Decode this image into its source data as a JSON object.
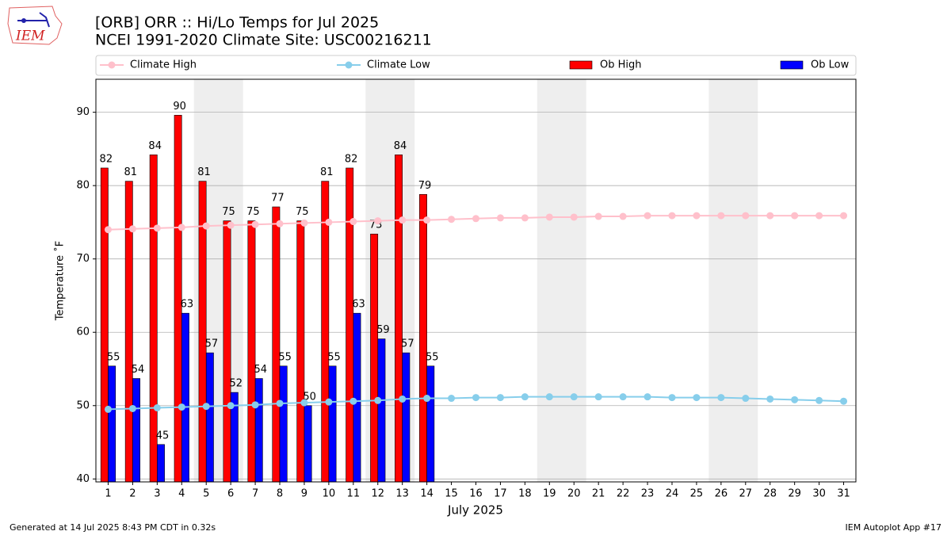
{
  "chart_data": {
    "type": "combo",
    "title": "[ORB] ORR :: Hi/Lo Temps for Jul 2025",
    "subtitle": "NCEI 1991-2020 Climate Site: USC00216211",
    "x_label": "July 2025",
    "y_label": "Temperature ˚F",
    "footer_left": "Generated at 14 Jul 2025 8:43 PM CDT in 0.32s",
    "footer_right": "IEM Autoplot App #17",
    "logo_text": "IEM",
    "x": [
      1,
      2,
      3,
      4,
      5,
      6,
      7,
      8,
      9,
      10,
      11,
      12,
      13,
      14,
      15,
      16,
      17,
      18,
      19,
      20,
      21,
      22,
      23,
      24,
      25,
      26,
      27,
      28,
      29,
      30,
      31
    ],
    "xlim": [
      0.5,
      31.5
    ],
    "xticks": [
      1,
      2,
      3,
      4,
      5,
      6,
      7,
      8,
      9,
      10,
      11,
      12,
      13,
      14,
      15,
      16,
      17,
      18,
      19,
      20,
      21,
      22,
      23,
      24,
      25,
      26,
      27,
      28,
      29,
      30,
      31
    ],
    "ylim": [
      39.6,
      94.5
    ],
    "yticks": [
      40,
      50,
      60,
      70,
      80,
      90
    ],
    "grid": true,
    "shaded_ranges": [
      [
        4.5,
        6.5
      ],
      [
        11.5,
        13.5
      ],
      [
        18.5,
        20.5
      ],
      [
        25.5,
        27.5
      ]
    ],
    "series": [
      {
        "name": "Climate High",
        "kind": "line",
        "color": "#ffc0cb",
        "values": [
          74.0,
          74.1,
          74.2,
          74.3,
          74.5,
          74.6,
          74.7,
          74.8,
          74.9,
          75.0,
          75.1,
          75.2,
          75.3,
          75.3,
          75.4,
          75.5,
          75.6,
          75.6,
          75.7,
          75.7,
          75.8,
          75.8,
          75.9,
          75.9,
          75.9,
          75.9,
          75.9,
          75.9,
          75.9,
          75.9,
          75.9
        ]
      },
      {
        "name": "Climate Low",
        "kind": "line",
        "color": "#87ceeb",
        "values": [
          49.5,
          49.6,
          49.7,
          49.8,
          49.9,
          50.0,
          50.1,
          50.3,
          50.4,
          50.5,
          50.6,
          50.7,
          50.9,
          51.0,
          51.0,
          51.1,
          51.1,
          51.2,
          51.2,
          51.2,
          51.2,
          51.2,
          51.2,
          51.1,
          51.1,
          51.1,
          51.0,
          50.9,
          50.8,
          50.7,
          50.6
        ]
      },
      {
        "name": "Ob High",
        "kind": "bar",
        "color": "#ff0000",
        "offset": -1,
        "values": [
          82.4,
          80.6,
          84.2,
          89.6,
          80.6,
          75.2,
          75.2,
          77.1,
          75.2,
          80.6,
          82.4,
          73.4,
          84.2,
          78.8,
          null,
          null,
          null,
          null,
          null,
          null,
          null,
          null,
          null,
          null,
          null,
          null,
          null,
          null,
          null,
          null,
          null
        ],
        "value_labels": [
          "82",
          "81",
          "84",
          "90",
          "81",
          "75",
          "75",
          "77",
          "75",
          "81",
          "82",
          "73",
          "84",
          "79",
          null,
          null,
          null,
          null,
          null,
          null,
          null,
          null,
          null,
          null,
          null,
          null,
          null,
          null,
          null,
          null,
          null
        ]
      },
      {
        "name": "Ob Low",
        "kind": "bar",
        "color": "#0000ff",
        "offset": 0,
        "values": [
          55.4,
          53.7,
          44.7,
          62.6,
          57.2,
          51.8,
          53.7,
          55.4,
          50.0,
          55.4,
          62.6,
          59.1,
          57.2,
          55.4,
          null,
          null,
          null,
          null,
          null,
          null,
          null,
          null,
          null,
          null,
          null,
          null,
          null,
          null,
          null,
          null,
          null
        ],
        "value_labels": [
          "55",
          "54",
          "45",
          "63",
          "57",
          "52",
          "54",
          "55",
          "50",
          "55",
          "63",
          "59",
          "57",
          "55",
          null,
          null,
          null,
          null,
          null,
          null,
          null,
          null,
          null,
          null,
          null,
          null,
          null,
          null,
          null,
          null,
          null
        ]
      }
    ]
  }
}
